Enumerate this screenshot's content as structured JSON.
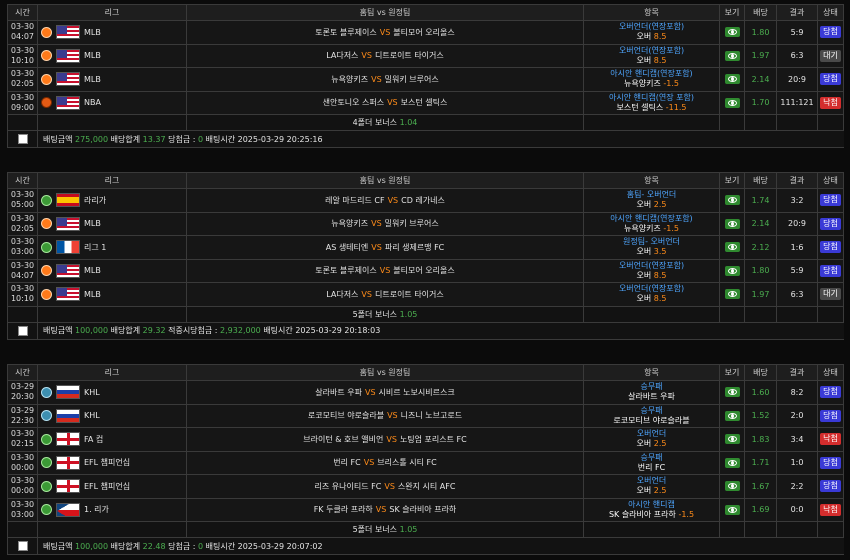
{
  "headers": {
    "time": "시간",
    "league": "리그",
    "match": "홈팀 vs 원정팀",
    "bet": "항목",
    "view": "보기",
    "odds": "배당",
    "result": "결과",
    "status": "상태"
  },
  "vs_label": "VS",
  "slips": [
    {
      "rows": [
        {
          "date": "03-30",
          "time": "04:07",
          "sport": "baseball",
          "flag": "us",
          "league": "MLB",
          "home": "토론토 블루제이스",
          "away": "볼티모어 오리올스",
          "bet_type": "오버언더(연장포함)",
          "pick": "오버",
          "line": "8.5",
          "odds": "1.80",
          "result": "5:9",
          "status": "당첨",
          "status_kind": "win"
        },
        {
          "date": "03-30",
          "time": "10:10",
          "sport": "baseball",
          "flag": "us",
          "league": "MLB",
          "home": "LA다저스",
          "away": "디트로이트 타이거스",
          "bet_type": "오버언더(연장포함)",
          "pick": "오버",
          "line": "8.5",
          "odds": "1.97",
          "result": "6:3",
          "status": "대기",
          "status_kind": "wait"
        },
        {
          "date": "03-30",
          "time": "02:05",
          "sport": "baseball",
          "flag": "us",
          "league": "MLB",
          "home": "뉴욕양키즈",
          "away": "밀워키 브루어스",
          "bet_type": "아시안 핸디캡(연장포함)",
          "pick": "뉴욕양키즈",
          "line": "-1.5",
          "odds": "2.14",
          "result": "20:9",
          "status": "당첨",
          "status_kind": "win"
        },
        {
          "date": "03-30",
          "time": "09:00",
          "sport": "basketball",
          "flag": "us",
          "league": "NBA",
          "home": "샌안토니오 스퍼스",
          "away": "보스턴 셀틱스",
          "bet_type": "아시안 핸디캡(연장 포함)",
          "pick": "보스턴 셀틱스",
          "line": "-11.5",
          "odds": "1.70",
          "result": "111:121",
          "status": "낙첨",
          "status_kind": "lose"
        }
      ],
      "bonus_label": "4폴더 보너스",
      "bonus_value": "1.04",
      "summary": [
        {
          "label": "배팅금액",
          "value": "275,000"
        },
        {
          "label": "배당합계",
          "value": "13.37"
        },
        {
          "label": "당첨금 :",
          "value": "0"
        },
        {
          "label": "배팅시간",
          "value": "2025-03-29 20:25:16"
        }
      ]
    },
    {
      "rows": [
        {
          "date": "03-30",
          "time": "05:00",
          "sport": "soccer",
          "flag": "es",
          "league": "라리가",
          "home": "레알 마드리드 CF",
          "away": "CD 레가네스",
          "bet_type": "홈팀- 오버언더",
          "pick": "오버",
          "line": "2.5",
          "odds": "1.74",
          "result": "3:2",
          "status": "당첨",
          "status_kind": "win"
        },
        {
          "date": "03-30",
          "time": "02:05",
          "sport": "baseball",
          "flag": "us",
          "league": "MLB",
          "home": "뉴욕양키즈",
          "away": "밀워키 브루어스",
          "bet_type": "아시안 핸디캡(연장포함)",
          "pick": "뉴욕양키즈",
          "line": "-1.5",
          "odds": "2.14",
          "result": "20:9",
          "status": "당첨",
          "status_kind": "win"
        },
        {
          "date": "03-30",
          "time": "03:00",
          "sport": "soccer",
          "flag": "fr",
          "league": "리그 1",
          "home": "AS 생테티엔",
          "away": "파리 생제르맹 FC",
          "bet_type": "원정팀- 오버언더",
          "pick": "오버",
          "line": "3.5",
          "odds": "2.12",
          "result": "1:6",
          "status": "당첨",
          "status_kind": "win"
        },
        {
          "date": "03-30",
          "time": "04:07",
          "sport": "baseball",
          "flag": "us",
          "league": "MLB",
          "home": "토론토 블루제이스",
          "away": "볼티모어 오리올스",
          "bet_type": "오버언더(연장포함)",
          "pick": "오버",
          "line": "8.5",
          "odds": "1.80",
          "result": "5:9",
          "status": "당첨",
          "status_kind": "win"
        },
        {
          "date": "03-30",
          "time": "10:10",
          "sport": "baseball",
          "flag": "us",
          "league": "MLB",
          "home": "LA다저스",
          "away": "디트로이트 타이거스",
          "bet_type": "오버언더(연장포함)",
          "pick": "오버",
          "line": "8.5",
          "odds": "1.97",
          "result": "6:3",
          "status": "대기",
          "status_kind": "wait"
        }
      ],
      "bonus_label": "5폴더 보너스",
      "bonus_value": "1.05",
      "summary": [
        {
          "label": "배팅금액",
          "value": "100,000"
        },
        {
          "label": "배당합계",
          "value": "29.32"
        },
        {
          "label": "적중시당첨금 :",
          "value": "2,932,000"
        },
        {
          "label": "배팅시간",
          "value": "2025-03-29 20:18:03"
        }
      ]
    },
    {
      "rows": [
        {
          "date": "03-29",
          "time": "20:30",
          "sport": "hockey",
          "flag": "ru",
          "league": "KHL",
          "home": "살라바트 우파",
          "away": "시비르 노보시비르스크",
          "bet_type": "승무패",
          "pick": "살라바트 우파",
          "line": "",
          "odds": "1.60",
          "result": "8:2",
          "status": "당첨",
          "status_kind": "win"
        },
        {
          "date": "03-29",
          "time": "22:30",
          "sport": "hockey",
          "flag": "ru",
          "league": "KHL",
          "home": "로코모티브 야로슬라블",
          "away": "니즈니 노브고로드",
          "bet_type": "승무패",
          "pick": "로코모티브 야로슬라블",
          "line": "",
          "odds": "1.52",
          "result": "2:0",
          "status": "당첨",
          "status_kind": "win"
        },
        {
          "date": "03-30",
          "time": "02:15",
          "sport": "soccer",
          "flag": "en",
          "league": "FA 컵",
          "home": "브라이턴 & 호브 앨비언",
          "away": "노팅엄 포리스트 FC",
          "bet_type": "오버언더",
          "pick": "오버",
          "line": "2.5",
          "odds": "1.83",
          "result": "3:4",
          "status": "낙첨",
          "status_kind": "lose"
        },
        {
          "date": "03-30",
          "time": "00:00",
          "sport": "soccer",
          "flag": "en",
          "league": "EFL 챔피언십",
          "home": "번리 FC",
          "away": "브리스톨 시티 FC",
          "bet_type": "승무패",
          "pick": "번리 FC",
          "line": "",
          "odds": "1.71",
          "result": "1:0",
          "status": "당첨",
          "status_kind": "win"
        },
        {
          "date": "03-30",
          "time": "00:00",
          "sport": "soccer",
          "flag": "en",
          "league": "EFL 챔피언십",
          "home": "리즈 유나이티드 FC",
          "away": "스완지 시티 AFC",
          "bet_type": "오버언더",
          "pick": "오버",
          "line": "2.5",
          "odds": "1.67",
          "result": "2:2",
          "status": "당첨",
          "status_kind": "win"
        },
        {
          "date": "03-30",
          "time": "03:00",
          "sport": "soccer",
          "flag": "cz",
          "league": "1. 리가",
          "home": "FK 두클라 프라하",
          "away": "SK 슬라비아 프라하",
          "bet_type": "아시안 핸디캡",
          "pick": "SK 슬라비아 프라하",
          "line": "-1.5",
          "odds": "1.69",
          "result": "0:0",
          "status": "낙첨",
          "status_kind": "lose"
        }
      ],
      "bonus_label": "5폴더 보너스",
      "bonus_value": "1.05",
      "summary": [
        {
          "label": "배팅금액",
          "value": "100,000"
        },
        {
          "label": "배당합계",
          "value": "22.48"
        },
        {
          "label": "당첨금 :",
          "value": "0"
        },
        {
          "label": "배팅시간",
          "value": "2025-03-29 20:07:02"
        }
      ]
    }
  ]
}
